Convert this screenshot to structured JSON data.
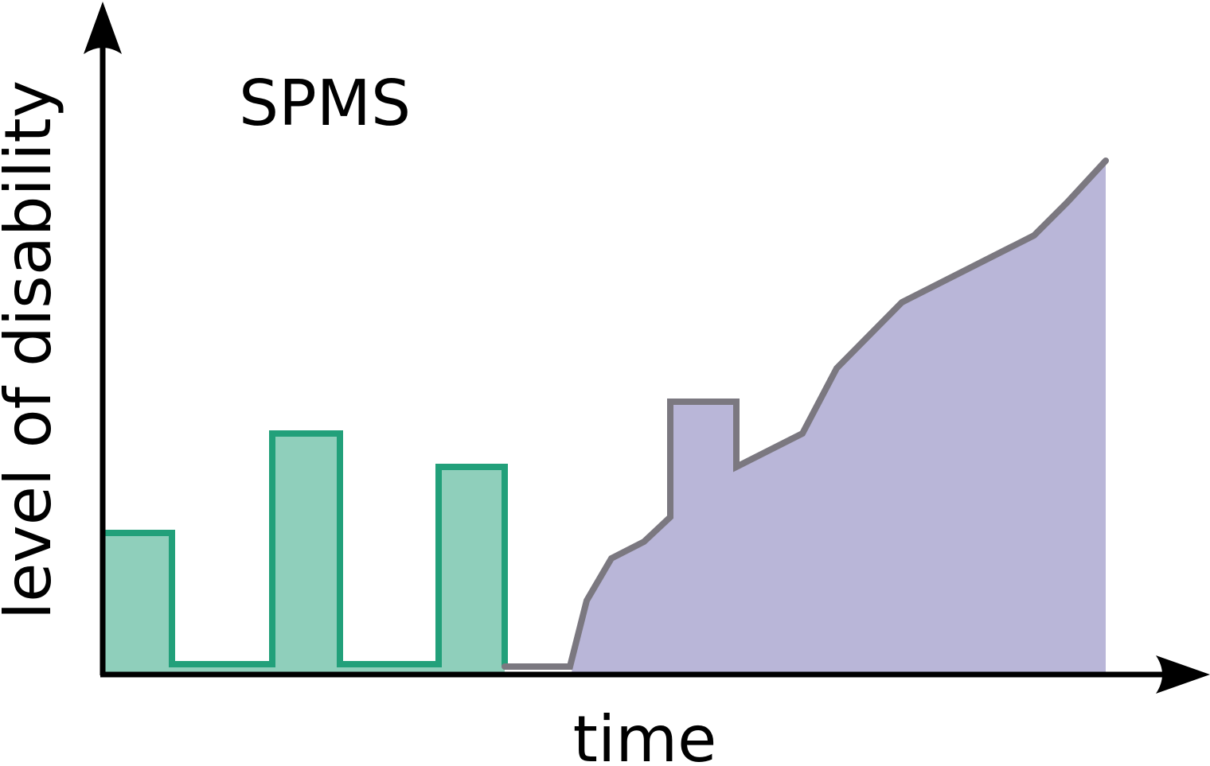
{
  "title": "SPMS",
  "x_axis_label": "time",
  "y_axis_label": "level of disability",
  "colors": {
    "relapse_fill": "#8fcfbb",
    "relapse_stroke": "#22a07a",
    "progression_fill": "#b9b6d8",
    "progression_stroke": "#7b7880",
    "axis": "#000000"
  }
}
